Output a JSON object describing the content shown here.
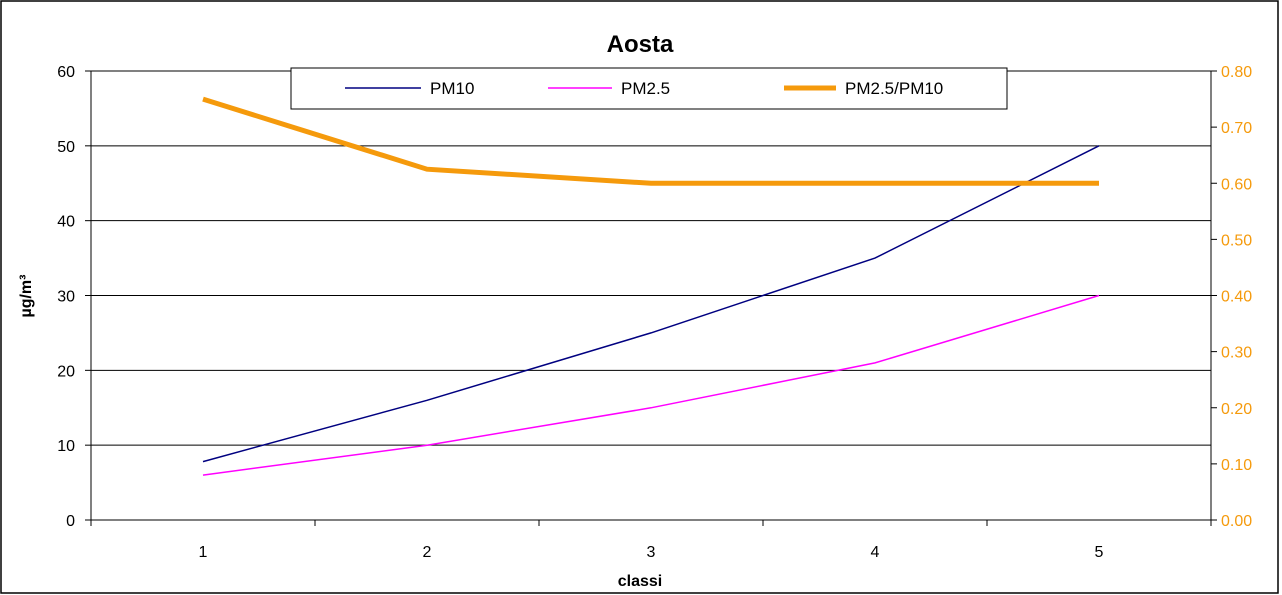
{
  "chart_data": {
    "type": "line",
    "title": "Aosta",
    "xlabel": "classi",
    "ylabel": "µg/m³",
    "y2label": "",
    "x": [
      1,
      2,
      3,
      4,
      5
    ],
    "x_tick_labels": [
      "1",
      "2",
      "3",
      "4",
      "5"
    ],
    "ylim": [
      0,
      60
    ],
    "y_ticks": [
      "0",
      "10",
      "20",
      "30",
      "40",
      "50",
      "60"
    ],
    "y2lim": [
      0,
      0.8
    ],
    "y2_ticks": [
      "0.00",
      "0.10",
      "0.20",
      "0.30",
      "0.40",
      "0.50",
      "0.60",
      "0.70",
      "0.80"
    ],
    "grid": "horizontal major lines",
    "legend_placement": "top",
    "series": [
      {
        "name": "PM10",
        "axis": "left",
        "color": "#000080",
        "values": [
          7.8,
          16,
          25,
          35,
          50
        ]
      },
      {
        "name": "PM2.5",
        "axis": "left",
        "color": "#ff00ff",
        "values": [
          6,
          10,
          15,
          21,
          30
        ]
      },
      {
        "name": "PM2.5/PM10",
        "axis": "right",
        "color": "#f59a0c",
        "values": [
          0.75,
          0.625,
          0.6,
          0.6,
          0.6
        ]
      }
    ]
  }
}
